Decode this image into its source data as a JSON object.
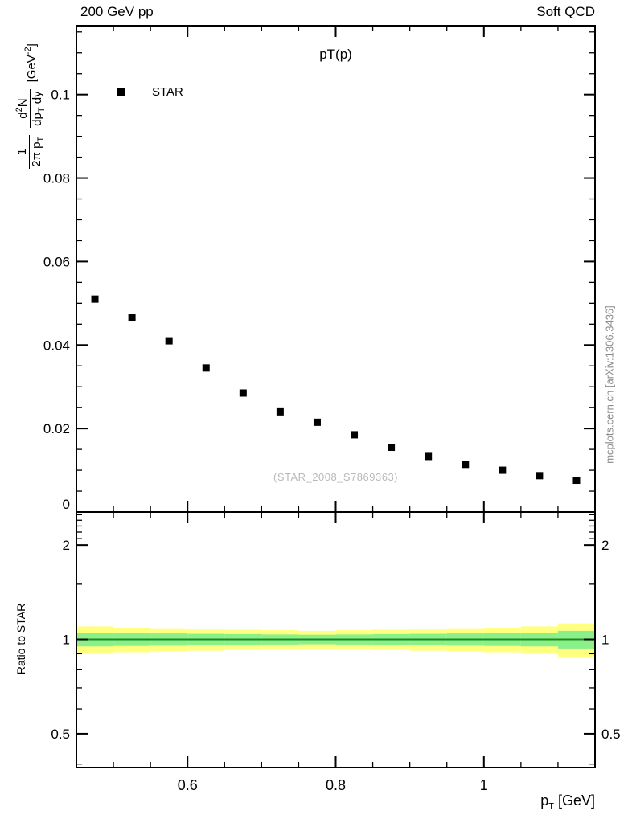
{
  "header": {
    "left": "200 GeV pp",
    "right": "Soft QCD"
  },
  "main_plot": {
    "title": "pT(p)",
    "legend": [
      {
        "label": "STAR",
        "marker": "filled-square",
        "color": "#000000"
      }
    ],
    "watermark": "(STAR_2008_S7869363)"
  },
  "ratio_plot": {
    "ylabel": "Ratio to STAR"
  },
  "axis_labels": {
    "x": {
      "pre": "p",
      "sub": "T",
      "post": " [GeV]"
    },
    "y_main": {
      "f1num": "1",
      "f1den": "2π p",
      "f1den_sub": "T",
      "f2num_pre": "d",
      "f2num_sup": "2",
      "f2num_post": "N",
      "f2den_pre": "dp",
      "f2den_sub": "T",
      "f2den_post": " dy",
      "units_pre": "[GeV",
      "units_sup": "-2",
      "units_post": "]"
    }
  },
  "side_note": "mcplots.cern.ch [arXiv:1306.3436]",
  "chart_data": [
    {
      "type": "scatter",
      "title": "pT(p)",
      "xlabel": "pT [GeV]",
      "ylabel": "1/(2π pT) d²N/(dpT dy) [GeV⁻²]",
      "xlim": [
        0.45,
        1.15
      ],
      "ylim": [
        0,
        0.1165
      ],
      "grid": false,
      "legend_position": "top-left-inside",
      "xticks": {
        "major": [
          0.6,
          0.8,
          1
        ],
        "labels": [
          "0.6",
          "0.8",
          "1"
        ],
        "minor_step": 0.05
      },
      "yticks": {
        "major": [
          0,
          0.02,
          0.04,
          0.06,
          0.08,
          0.1
        ],
        "labels": [
          "0",
          "0.02",
          "0.04",
          "0.06",
          "0.08",
          "0.1"
        ],
        "minor_step": 0.005
      },
      "series": [
        {
          "name": "STAR",
          "marker": "square",
          "color": "#000000",
          "x": [
            0.475,
            0.525,
            0.575,
            0.625,
            0.675,
            0.725,
            0.775,
            0.825,
            0.875,
            0.925,
            0.975,
            1.025,
            1.075,
            1.125
          ],
          "y": [
            0.051,
            0.0465,
            0.041,
            0.0345,
            0.0285,
            0.024,
            0.0215,
            0.0185,
            0.0155,
            0.0133,
            0.0114,
            0.01,
            0.0087,
            0.0076
          ]
        }
      ]
    },
    {
      "type": "band",
      "name": "ratio-panel",
      "ylabel": "Ratio to STAR",
      "yscale": "log",
      "ylim": [
        0.39,
        2.55
      ],
      "yticks": {
        "major": [
          0.5,
          1,
          2
        ],
        "labels": [
          "0.5",
          "1",
          "2"
        ],
        "minor": [
          0.4,
          0.6,
          0.7,
          0.8,
          0.9,
          1.5,
          2.1,
          2.2,
          2.3,
          2.4,
          2.5
        ]
      },
      "bin_edges": [
        0.45,
        0.5,
        0.55,
        0.6,
        0.65,
        0.7,
        0.75,
        0.8,
        0.85,
        0.9,
        0.95,
        1.0,
        1.05,
        1.1,
        1.15
      ],
      "bands": [
        {
          "name": "data-total-uncertainty",
          "color": "#ffff80",
          "lo": [
            0.9,
            0.91,
            0.915,
            0.92,
            0.925,
            0.93,
            0.935,
            0.93,
            0.925,
            0.92,
            0.915,
            0.91,
            0.9,
            0.875
          ],
          "hi": [
            1.1,
            1.09,
            1.085,
            1.08,
            1.075,
            1.07,
            1.065,
            1.07,
            1.075,
            1.08,
            1.085,
            1.09,
            1.1,
            1.125
          ]
        },
        {
          "name": "data-stat-uncertainty",
          "color": "#8af08a",
          "lo": [
            0.95,
            0.953,
            0.955,
            0.958,
            0.96,
            0.963,
            0.965,
            0.963,
            0.96,
            0.958,
            0.955,
            0.953,
            0.95,
            0.935
          ],
          "hi": [
            1.05,
            1.047,
            1.045,
            1.042,
            1.04,
            1.037,
            1.035,
            1.037,
            1.04,
            1.042,
            1.045,
            1.047,
            1.05,
            1.065
          ]
        }
      ],
      "reference_line": {
        "y": 1,
        "color": "#1d8a1d"
      }
    }
  ]
}
